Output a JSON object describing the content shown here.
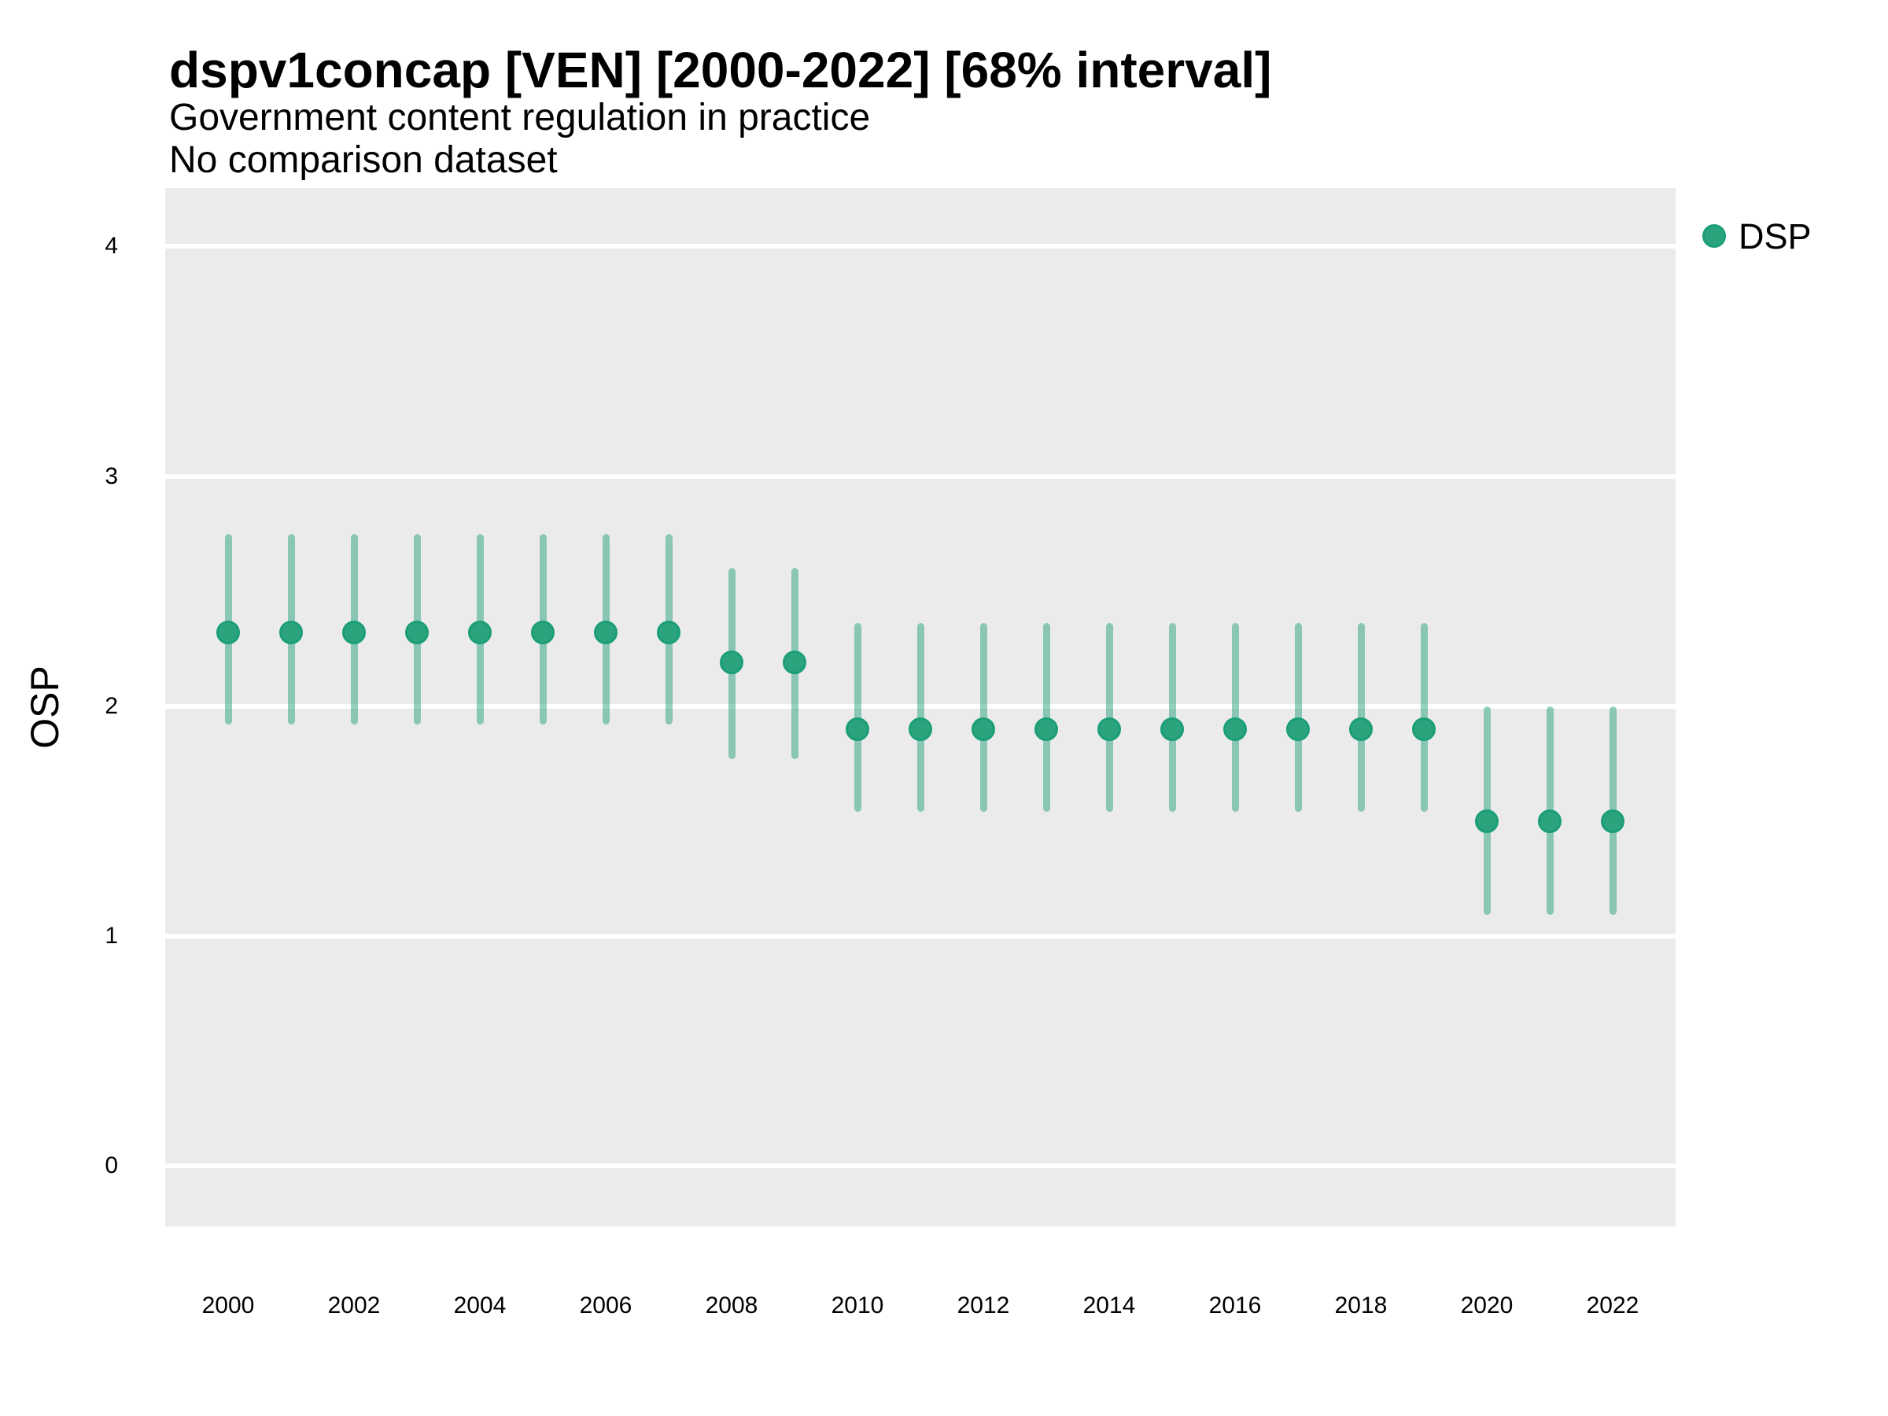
{
  "chart_data": {
    "type": "scatter",
    "title": "dspv1concap [VEN] [2000-2022] [68% interval]",
    "subtitle": "Government content regulation in practice",
    "note": "No comparison dataset",
    "xlabel": "",
    "ylabel": "OSP",
    "interval_label": "68% interval",
    "legend": {
      "position": "right",
      "entries": [
        {
          "label": "DSP"
        }
      ]
    },
    "x": [
      2000,
      2001,
      2002,
      2003,
      2004,
      2005,
      2006,
      2007,
      2008,
      2009,
      2010,
      2011,
      2012,
      2013,
      2014,
      2015,
      2016,
      2017,
      2018,
      2019,
      2020,
      2021,
      2022
    ],
    "series": [
      {
        "name": "DSP",
        "values": [
          2.32,
          2.32,
          2.32,
          2.32,
          2.32,
          2.32,
          2.32,
          2.32,
          2.19,
          2.19,
          1.9,
          1.9,
          1.9,
          1.9,
          1.9,
          1.9,
          1.9,
          1.9,
          1.9,
          1.9,
          1.5,
          1.5,
          1.5
        ],
        "lower": [
          1.92,
          1.92,
          1.92,
          1.92,
          1.92,
          1.92,
          1.92,
          1.92,
          1.77,
          1.77,
          1.54,
          1.54,
          1.54,
          1.54,
          1.54,
          1.54,
          1.54,
          1.54,
          1.54,
          1.54,
          1.09,
          1.09,
          1.09
        ],
        "upper": [
          2.75,
          2.75,
          2.75,
          2.75,
          2.75,
          2.75,
          2.75,
          2.75,
          2.6,
          2.6,
          2.36,
          2.36,
          2.36,
          2.36,
          2.36,
          2.36,
          2.36,
          2.36,
          2.36,
          2.36,
          2.0,
          2.0,
          2.0
        ]
      }
    ],
    "xticks": [
      2000,
      2002,
      2004,
      2006,
      2008,
      2010,
      2012,
      2014,
      2016,
      2018,
      2020,
      2022
    ],
    "yticks": [
      0,
      1,
      2,
      3,
      4
    ],
    "xlim": [
      1999,
      2023
    ],
    "ylim": [
      -0.265,
      4.255
    ],
    "grid": "horizontal-major-only",
    "colors": {
      "point_fill": "#2BA47D",
      "point_stroke": "#1B9E77",
      "interval": "rgba(27,158,119,0.47)",
      "panel_bg": "#EBEBEB",
      "gridline": "#FFFFFF",
      "text": "#000000"
    }
  }
}
